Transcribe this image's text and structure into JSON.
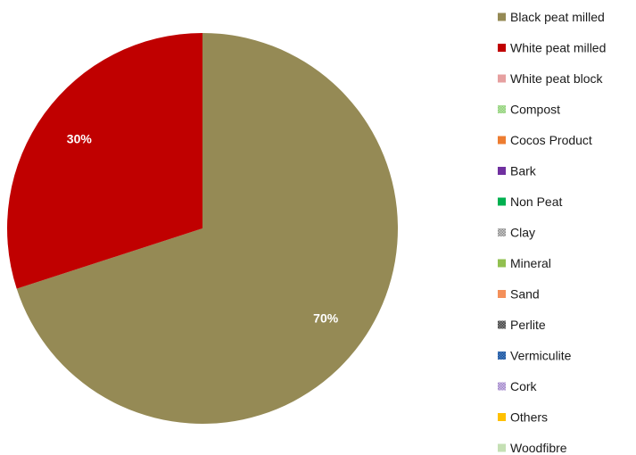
{
  "chart_data": {
    "type": "pie",
    "start_angle_deg": 0,
    "direction": "clockwise",
    "legend_placement": "right",
    "slices": [
      {
        "label": "Black peat milled",
        "value": 70,
        "display": "70%",
        "color": "#958A55"
      },
      {
        "label": "White peat milled",
        "value": 30,
        "display": "30%",
        "color": "#C00000"
      },
      {
        "label": "White peat block",
        "value": 0,
        "display": "",
        "color": "#E6A0A0"
      },
      {
        "label": "Compost",
        "value": 0,
        "display": "",
        "color": "#B9E3A6",
        "pattern": "check",
        "pattern_color": "#8FD07A"
      },
      {
        "label": "Cocos Product",
        "value": 0,
        "display": "",
        "color": "#ED7D31"
      },
      {
        "label": "Bark",
        "value": 0,
        "display": "",
        "color": "#7030A0"
      },
      {
        "label": "Non Peat",
        "value": 0,
        "display": "",
        "color": "#00B050"
      },
      {
        "label": "Clay",
        "value": 0,
        "display": "",
        "color": "#D0D0D0",
        "pattern": "check",
        "pattern_color": "#8A8A8A"
      },
      {
        "label": "Mineral",
        "value": 0,
        "display": "",
        "color": "#92C050"
      },
      {
        "label": "Sand",
        "value": 0,
        "display": "",
        "color": "#F4905A"
      },
      {
        "label": "Perlite",
        "value": 0,
        "display": "",
        "color": "#8C8C8C",
        "pattern": "check",
        "pattern_color": "#3F3F3F"
      },
      {
        "label": "Vermiculite",
        "value": 0,
        "display": "",
        "color": "#4A86C8",
        "pattern": "check",
        "pattern_color": "#1F4E96"
      },
      {
        "label": "Cork",
        "value": 0,
        "display": "",
        "color": "#D3C2E8",
        "pattern": "check",
        "pattern_color": "#9E84C8"
      },
      {
        "label": "Others",
        "value": 0,
        "display": "",
        "color": "#FFC000"
      },
      {
        "label": "Woodfibre",
        "value": 0,
        "display": "",
        "color": "#C5E0B4"
      }
    ]
  }
}
